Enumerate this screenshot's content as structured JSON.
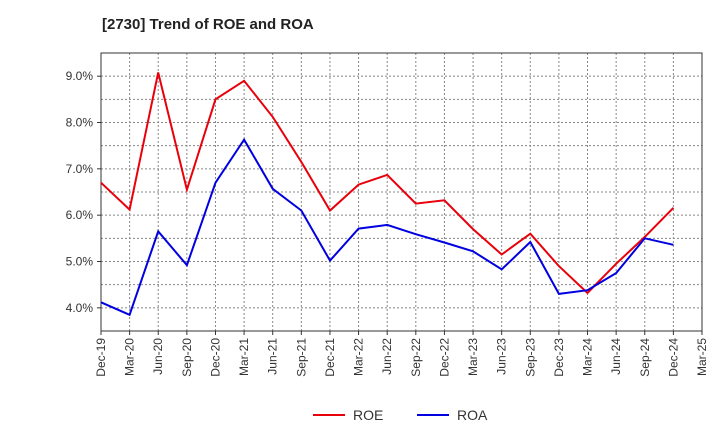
{
  "chart_data": {
    "type": "line",
    "title": "[2730]  Trend of ROE and ROA",
    "x": [
      "Dec-19",
      "Mar-20",
      "Jun-20",
      "Sep-20",
      "Dec-20",
      "Mar-21",
      "Jun-21",
      "Sep-21",
      "Dec-21",
      "Mar-22",
      "Jun-22",
      "Sep-22",
      "Dec-22",
      "Mar-23",
      "Jun-23",
      "Sep-23",
      "Dec-23",
      "Mar-24",
      "Jun-24",
      "Sep-24",
      "Dec-24",
      "Mar-25"
    ],
    "y_ticks": [
      "4.0%",
      "5.0%",
      "6.0%",
      "7.0%",
      "8.0%",
      "9.0%"
    ],
    "ylim": [
      3.5,
      9.5
    ],
    "grid": true,
    "legend_position": "bottom-center",
    "series": [
      {
        "name": "ROE",
        "color": "#e8000b",
        "values": [
          6.7,
          6.12,
          9.08,
          6.55,
          8.5,
          8.9,
          8.12,
          7.15,
          6.1,
          6.66,
          6.87,
          6.25,
          6.32,
          5.7,
          5.15,
          5.6,
          4.9,
          4.32,
          4.95,
          5.53,
          6.16,
          null
        ]
      },
      {
        "name": "ROA",
        "color": "#0000e0",
        "values": [
          4.12,
          3.85,
          5.65,
          4.92,
          6.7,
          7.63,
          6.57,
          6.1,
          5.02,
          5.71,
          5.79,
          5.59,
          5.41,
          5.22,
          4.83,
          5.42,
          4.3,
          4.38,
          4.75,
          5.5,
          5.36,
          null
        ]
      }
    ]
  }
}
